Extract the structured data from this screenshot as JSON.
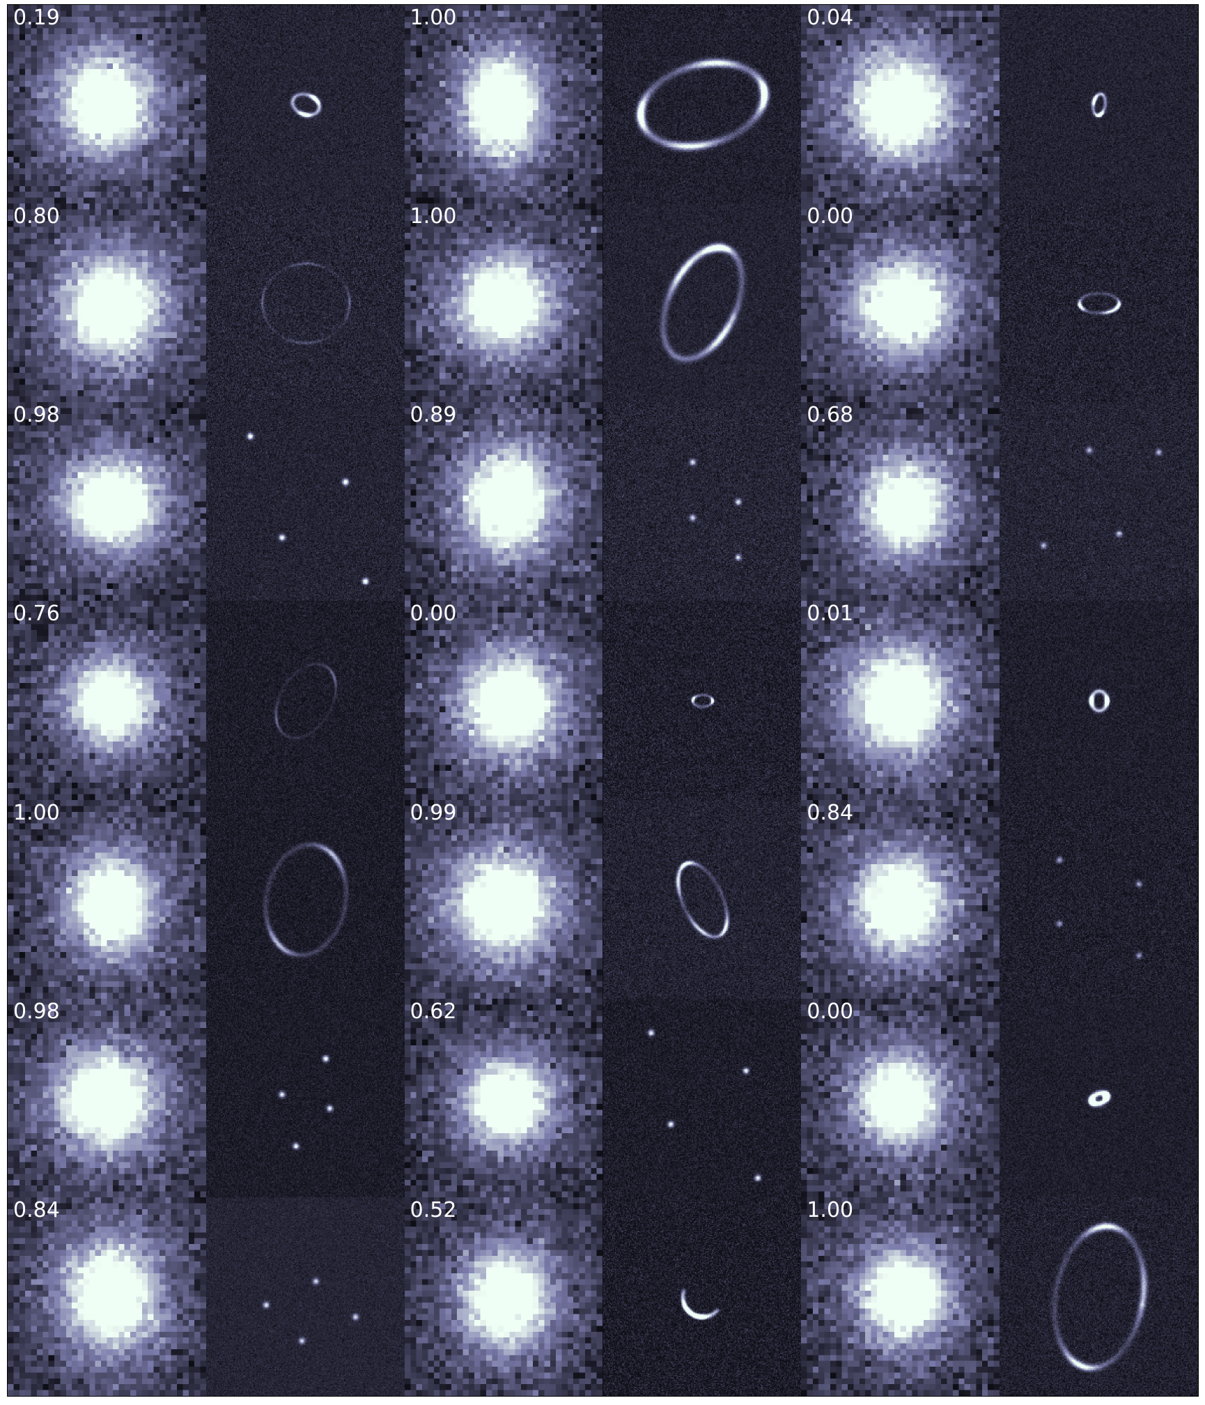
{
  "panels": [
    {
      "score": "0.19",
      "lens": {
        "kind": "ring",
        "rx": 0.07,
        "ry": 0.05,
        "rot": 20,
        "clumps": [
          80,
          300
        ],
        "width": 1.4,
        "bright": 0.8
      }
    },
    {
      "score": "1.00",
      "lens": {
        "kind": "ring",
        "rx": 0.32,
        "ry": 0.2,
        "rot": -15,
        "clumps": [
          10,
          110,
          190,
          290
        ],
        "width": 2.6,
        "bright": 1.0
      }
    },
    {
      "score": "0.04",
      "lens": {
        "kind": "ring",
        "rx": 0.03,
        "ry": 0.055,
        "rot": 10,
        "clumps": [
          200,
          60
        ],
        "width": 1.2,
        "bright": 0.7
      }
    },
    {
      "score": "0.80",
      "lens": {
        "kind": "ring",
        "rx": 0.22,
        "ry": 0.2,
        "rot": 0,
        "clumps": [
          0,
          90,
          180,
          270
        ],
        "width": 1.0,
        "bright": 0.45
      }
    },
    {
      "score": "1.00",
      "lens": {
        "kind": "ring",
        "rx": 0.17,
        "ry": 0.3,
        "rot": 25,
        "clumps": [
          20,
          200,
          250
        ],
        "width": 2.4,
        "bright": 1.0
      }
    },
    {
      "score": "0.00",
      "lens": {
        "kind": "ring",
        "rx": 0.1,
        "ry": 0.05,
        "rot": 0,
        "clumps": [
          160,
          60,
          20
        ],
        "width": 1.2,
        "bright": 0.6
      }
    },
    {
      "score": "0.98",
      "lens": {
        "kind": "points",
        "pts": [
          [
            -0.28,
            -0.33
          ],
          [
            0.2,
            -0.1
          ],
          [
            -0.12,
            0.18
          ],
          [
            0.3,
            0.4
          ]
        ],
        "bright": 0.95
      }
    },
    {
      "score": "0.89",
      "lens": {
        "kind": "points",
        "pts": [
          [
            -0.05,
            -0.2
          ],
          [
            0.18,
            0.0
          ],
          [
            -0.05,
            0.08
          ],
          [
            0.18,
            0.28
          ]
        ],
        "bright": 0.7
      }
    },
    {
      "score": "0.68",
      "lens": {
        "kind": "points",
        "pts": [
          [
            -0.05,
            -0.26
          ],
          [
            0.3,
            -0.25
          ],
          [
            -0.28,
            0.22
          ],
          [
            0.1,
            0.16
          ]
        ],
        "bright": 0.6
      }
    },
    {
      "score": "0.76",
      "lens": {
        "kind": "ring",
        "rx": 0.13,
        "ry": 0.2,
        "rot": 30,
        "clumps": [
          300,
          130
        ],
        "width": 1.0,
        "bright": 0.5
      }
    },
    {
      "score": "0.00",
      "lens": {
        "kind": "ring",
        "rx": 0.05,
        "ry": 0.03,
        "rot": 0,
        "clumps": [
          0,
          200
        ],
        "width": 1.0,
        "bright": 0.5
      }
    },
    {
      "score": "0.01",
      "lens": {
        "kind": "ring",
        "rx": 0.04,
        "ry": 0.05,
        "rot": 0,
        "clumps": [
          0,
          180
        ],
        "width": 1.4,
        "bright": 0.75
      }
    },
    {
      "score": "1.00",
      "lens": {
        "kind": "ring",
        "rx": 0.2,
        "ry": 0.28,
        "rot": 10,
        "clumps": [
          300,
          120
        ],
        "width": 1.8,
        "bright": 0.75
      }
    },
    {
      "score": "0.99",
      "lens": {
        "kind": "ring",
        "rx": 0.1,
        "ry": 0.2,
        "rot": -25,
        "clumps": [
          270,
          60,
          140,
          220
        ],
        "width": 1.4,
        "bright": 0.85
      }
    },
    {
      "score": "0.84",
      "lens": {
        "kind": "points",
        "pts": [
          [
            -0.2,
            -0.2
          ],
          [
            0.2,
            -0.08
          ],
          [
            -0.2,
            0.12
          ],
          [
            0.2,
            0.28
          ]
        ],
        "bright": 0.5
      }
    },
    {
      "score": "0.98",
      "lens": {
        "kind": "points",
        "pts": [
          [
            0.1,
            -0.2
          ],
          [
            -0.12,
            -0.02
          ],
          [
            0.12,
            0.05
          ],
          [
            -0.05,
            0.24
          ]
        ],
        "bright": 0.85
      }
    },
    {
      "score": "0.62",
      "lens": {
        "kind": "points",
        "pts": [
          [
            -0.26,
            -0.33
          ],
          [
            0.22,
            -0.14
          ],
          [
            -0.16,
            0.13
          ],
          [
            0.28,
            0.4
          ]
        ],
        "bright": 0.8
      }
    },
    {
      "score": "0.00",
      "lens": {
        "kind": "ring",
        "rx": 0.04,
        "ry": 0.025,
        "rot": -20,
        "clumps": [
          0,
          180
        ],
        "width": 1.8,
        "bright": 0.85
      }
    },
    {
      "score": "0.84",
      "lens": {
        "kind": "points",
        "pts": [
          [
            -0.2,
            0.04
          ],
          [
            0.05,
            -0.08
          ],
          [
            0.25,
            0.1
          ],
          [
            -0.02,
            0.22
          ]
        ],
        "bright": 0.7
      }
    },
    {
      "score": "0.52",
      "lens": {
        "kind": "ring",
        "rx": 0.1,
        "ry": 0.1,
        "rot": 0,
        "clumps": [
          100,
          140
        ],
        "width": 1.4,
        "bright": 0.7,
        "arc": [
          40,
          200
        ]
      }
    },
    {
      "score": "1.00",
      "lens": {
        "kind": "ring",
        "rx": 0.22,
        "ry": 0.36,
        "rot": 10,
        "clumps": [
          100,
          260,
          350
        ],
        "width": 2.2,
        "bright": 0.95
      }
    }
  ],
  "colors": {
    "background": "#0e0e16",
    "ink_low": "#14141f",
    "ink_mid": "#7a7aa0",
    "ink_high": "#eafff5",
    "score_text": "#ffffff"
  }
}
